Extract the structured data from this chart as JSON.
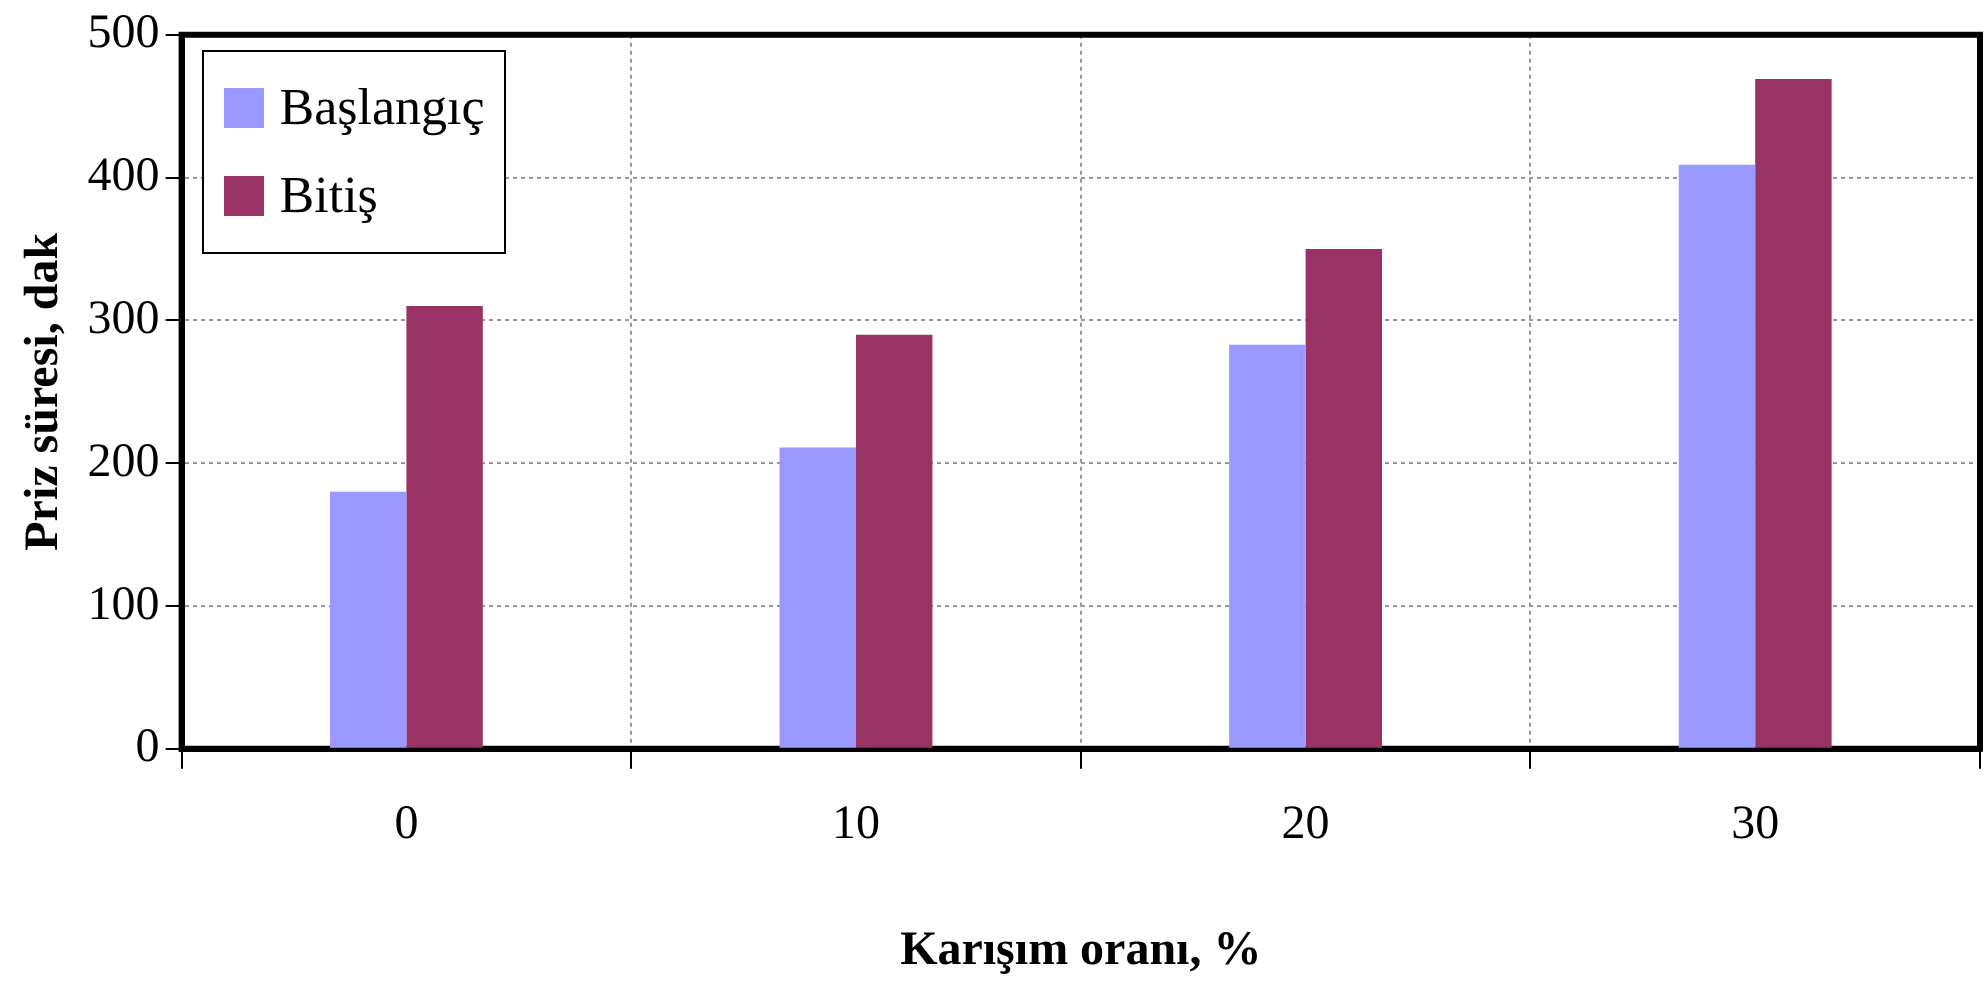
{
  "chart_data": {
    "type": "bar",
    "xlabel": "Karışım oranı, %",
    "ylabel": "Priz süresi, dak",
    "categories": [
      "0",
      "10",
      "20",
      "30"
    ],
    "series": [
      {
        "name": "Başlangıç",
        "color": "#9999ff",
        "values": [
          180,
          211,
          283,
          409
        ]
      },
      {
        "name": "Bitiş",
        "color": "#993366",
        "values": [
          310,
          290,
          350,
          469
        ]
      }
    ],
    "ylim": [
      0,
      500
    ],
    "yticks": [
      0,
      100,
      200,
      300,
      400,
      500
    ],
    "grid": true,
    "legend": "top left"
  }
}
